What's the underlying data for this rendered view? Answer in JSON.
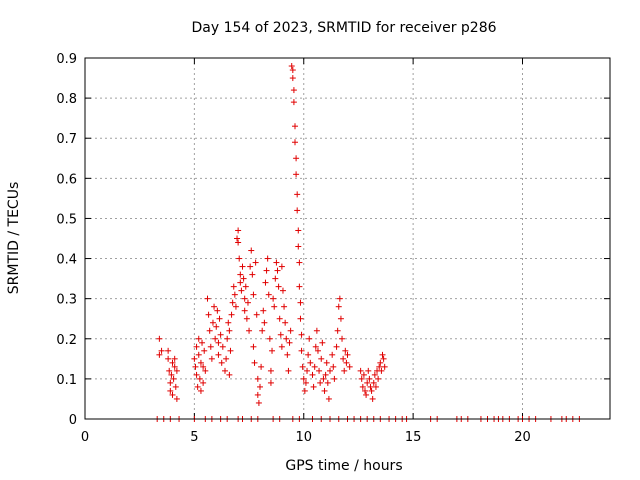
{
  "chart_data": {
    "type": "scatter",
    "title": "Day 154 of 2023, SRMTID for receiver p286",
    "xlabel": "GPS time / hours",
    "ylabel": "SRMTID / TECUs",
    "xlim": [
      0,
      24
    ],
    "ylim": [
      0,
      0.9
    ],
    "xticks": [
      0,
      5,
      10,
      15,
      20
    ],
    "yticks": [
      0,
      0.1,
      0.2,
      0.3,
      0.4,
      0.5,
      0.6,
      0.7,
      0.8,
      0.9
    ],
    "grid": true,
    "marker": "+",
    "color": "#e00000",
    "series": [
      {
        "name": "SRMTID",
        "points": [
          [
            3.4,
            0.2
          ],
          [
            3.4,
            0.16
          ],
          [
            3.5,
            0.17
          ],
          [
            3.8,
            0.17
          ],
          [
            3.8,
            0.15
          ],
          [
            3.85,
            0.12
          ],
          [
            3.9,
            0.09
          ],
          [
            3.9,
            0.07
          ],
          [
            3.95,
            0.11
          ],
          [
            4.0,
            0.14
          ],
          [
            4.0,
            0.06
          ],
          [
            4.05,
            0.1
          ],
          [
            4.1,
            0.15
          ],
          [
            4.1,
            0.13
          ],
          [
            4.15,
            0.08
          ],
          [
            4.2,
            0.12
          ],
          [
            4.2,
            0.05
          ],
          [
            5.0,
            0.15
          ],
          [
            5.05,
            0.13
          ],
          [
            5.1,
            0.18
          ],
          [
            5.1,
            0.11
          ],
          [
            5.15,
            0.08
          ],
          [
            5.2,
            0.2
          ],
          [
            5.2,
            0.16
          ],
          [
            5.25,
            0.1
          ],
          [
            5.3,
            0.14
          ],
          [
            5.3,
            0.07
          ],
          [
            5.35,
            0.19
          ],
          [
            5.4,
            0.13
          ],
          [
            5.4,
            0.09
          ],
          [
            5.45,
            0.17
          ],
          [
            5.5,
            0.12
          ],
          [
            5.6,
            0.3
          ],
          [
            5.65,
            0.26
          ],
          [
            5.7,
            0.22
          ],
          [
            5.75,
            0.18
          ],
          [
            5.8,
            0.15
          ],
          [
            5.85,
            0.24
          ],
          [
            5.9,
            0.28
          ],
          [
            5.95,
            0.2
          ],
          [
            6.0,
            0.23
          ],
          [
            6.05,
            0.27
          ],
          [
            6.1,
            0.19
          ],
          [
            6.1,
            0.16
          ],
          [
            6.15,
            0.25
          ],
          [
            6.2,
            0.21
          ],
          [
            6.25,
            0.14
          ],
          [
            6.3,
            0.18
          ],
          [
            6.4,
            0.12
          ],
          [
            6.45,
            0.15
          ],
          [
            6.5,
            0.2
          ],
          [
            6.55,
            0.24
          ],
          [
            6.6,
            0.22
          ],
          [
            6.6,
            0.11
          ],
          [
            6.65,
            0.17
          ],
          [
            6.7,
            0.26
          ],
          [
            6.75,
            0.29
          ],
          [
            6.8,
            0.33
          ],
          [
            6.85,
            0.31
          ],
          [
            6.9,
            0.28
          ],
          [
            6.95,
            0.45
          ],
          [
            7.0,
            0.47
          ],
          [
            7.0,
            0.44
          ],
          [
            7.05,
            0.4
          ],
          [
            7.1,
            0.36
          ],
          [
            7.1,
            0.34
          ],
          [
            7.15,
            0.32
          ],
          [
            7.2,
            0.38
          ],
          [
            7.25,
            0.35
          ],
          [
            7.3,
            0.3
          ],
          [
            7.3,
            0.27
          ],
          [
            7.35,
            0.33
          ],
          [
            7.4,
            0.25
          ],
          [
            7.45,
            0.29
          ],
          [
            7.5,
            0.22
          ],
          [
            7.55,
            0.38
          ],
          [
            7.6,
            0.42
          ],
          [
            7.65,
            0.36
          ],
          [
            7.7,
            0.31
          ],
          [
            7.7,
            0.18
          ],
          [
            7.75,
            0.14
          ],
          [
            7.8,
            0.39
          ],
          [
            7.85,
            0.26
          ],
          [
            7.9,
            0.1
          ],
          [
            7.9,
            0.06
          ],
          [
            7.95,
            0.04
          ],
          [
            8.0,
            0.08
          ],
          [
            8.05,
            0.13
          ],
          [
            8.1,
            0.22
          ],
          [
            8.15,
            0.27
          ],
          [
            8.2,
            0.24
          ],
          [
            8.25,
            0.34
          ],
          [
            8.3,
            0.37
          ],
          [
            8.35,
            0.4
          ],
          [
            8.4,
            0.31
          ],
          [
            8.45,
            0.2
          ],
          [
            8.5,
            0.12
          ],
          [
            8.5,
            0.09
          ],
          [
            8.55,
            0.17
          ],
          [
            8.6,
            0.3
          ],
          [
            8.65,
            0.28
          ],
          [
            8.7,
            0.35
          ],
          [
            8.75,
            0.39
          ],
          [
            8.8,
            0.37
          ],
          [
            8.85,
            0.33
          ],
          [
            8.9,
            0.25
          ],
          [
            8.95,
            0.21
          ],
          [
            9.0,
            0.18
          ],
          [
            9.0,
            0.38
          ],
          [
            9.05,
            0.32
          ],
          [
            9.1,
            0.28
          ],
          [
            9.15,
            0.24
          ],
          [
            9.2,
            0.2
          ],
          [
            9.25,
            0.16
          ],
          [
            9.3,
            0.12
          ],
          [
            9.35,
            0.19
          ],
          [
            9.4,
            0.22
          ],
          [
            9.45,
            0.88
          ],
          [
            9.5,
            0.87
          ],
          [
            9.5,
            0.85
          ],
          [
            9.55,
            0.82
          ],
          [
            9.55,
            0.79
          ],
          [
            9.6,
            0.73
          ],
          [
            9.6,
            0.69
          ],
          [
            9.65,
            0.65
          ],
          [
            9.65,
            0.61
          ],
          [
            9.7,
            0.56
          ],
          [
            9.7,
            0.52
          ],
          [
            9.75,
            0.47
          ],
          [
            9.75,
            0.43
          ],
          [
            9.8,
            0.39
          ],
          [
            9.8,
            0.33
          ],
          [
            9.85,
            0.29
          ],
          [
            9.85,
            0.25
          ],
          [
            9.9,
            0.21
          ],
          [
            9.9,
            0.17
          ],
          [
            9.95,
            0.13
          ],
          [
            10.0,
            0.1
          ],
          [
            10.05,
            0.07
          ],
          [
            10.1,
            0.09
          ],
          [
            10.15,
            0.12
          ],
          [
            10.2,
            0.16
          ],
          [
            10.25,
            0.2
          ],
          [
            10.3,
            0.14
          ],
          [
            10.4,
            0.11
          ],
          [
            10.45,
            0.08
          ],
          [
            10.5,
            0.13
          ],
          [
            10.55,
            0.18
          ],
          [
            10.6,
            0.22
          ],
          [
            10.65,
            0.17
          ],
          [
            10.7,
            0.12
          ],
          [
            10.75,
            0.09
          ],
          [
            10.8,
            0.15
          ],
          [
            10.85,
            0.19
          ],
          [
            10.9,
            0.1
          ],
          [
            10.95,
            0.07
          ],
          [
            11.0,
            0.11
          ],
          [
            11.05,
            0.14
          ],
          [
            11.1,
            0.09
          ],
          [
            11.15,
            0.05
          ],
          [
            11.2,
            0.12
          ],
          [
            11.3,
            0.16
          ],
          [
            11.35,
            0.13
          ],
          [
            11.4,
            0.1
          ],
          [
            11.5,
            0.18
          ],
          [
            11.55,
            0.22
          ],
          [
            11.6,
            0.28
          ],
          [
            11.65,
            0.3
          ],
          [
            11.7,
            0.25
          ],
          [
            11.75,
            0.2
          ],
          [
            11.8,
            0.15
          ],
          [
            11.85,
            0.12
          ],
          [
            11.9,
            0.17
          ],
          [
            11.95,
            0.14
          ],
          [
            12.0,
            0.16
          ],
          [
            12.1,
            0.13
          ],
          [
            12.6,
            0.12
          ],
          [
            12.65,
            0.1
          ],
          [
            12.7,
            0.08
          ],
          [
            12.75,
            0.11
          ],
          [
            12.8,
            0.07
          ],
          [
            12.85,
            0.06
          ],
          [
            12.9,
            0.09
          ],
          [
            12.95,
            0.12
          ],
          [
            13.0,
            0.1
          ],
          [
            13.05,
            0.08
          ],
          [
            13.1,
            0.07
          ],
          [
            13.15,
            0.05
          ],
          [
            13.2,
            0.09
          ],
          [
            13.25,
            0.11
          ],
          [
            13.3,
            0.08
          ],
          [
            13.35,
            0.12
          ],
          [
            13.4,
            0.1
          ],
          [
            13.45,
            0.13
          ],
          [
            13.5,
            0.14
          ],
          [
            13.55,
            0.12
          ],
          [
            13.6,
            0.16
          ],
          [
            13.65,
            0.15
          ],
          [
            13.7,
            0.13
          ],
          [
            3.3,
            0.0
          ],
          [
            3.6,
            0.0
          ],
          [
            3.9,
            0.0
          ],
          [
            4.3,
            0.0
          ],
          [
            5.0,
            0.0
          ],
          [
            5.5,
            0.0
          ],
          [
            5.8,
            0.0
          ],
          [
            6.2,
            0.0
          ],
          [
            6.5,
            0.0
          ],
          [
            7.0,
            0.0
          ],
          [
            7.2,
            0.0
          ],
          [
            7.6,
            0.0
          ],
          [
            7.9,
            0.0
          ],
          [
            8.6,
            0.0
          ],
          [
            8.9,
            0.0
          ],
          [
            9.5,
            0.0
          ],
          [
            9.8,
            0.0
          ],
          [
            10.4,
            0.0
          ],
          [
            10.8,
            0.0
          ],
          [
            11.2,
            0.0
          ],
          [
            11.6,
            0.0
          ],
          [
            12.0,
            0.0
          ],
          [
            12.3,
            0.0
          ],
          [
            12.6,
            0.0
          ],
          [
            12.9,
            0.0
          ],
          [
            13.2,
            0.0
          ],
          [
            13.5,
            0.0
          ],
          [
            13.9,
            0.0
          ],
          [
            14.2,
            0.0
          ],
          [
            14.5,
            0.0
          ],
          [
            14.7,
            0.0
          ],
          [
            15.8,
            0.0
          ],
          [
            16.1,
            0.0
          ],
          [
            17.0,
            0.0
          ],
          [
            17.2,
            0.0
          ],
          [
            17.5,
            0.0
          ],
          [
            18.1,
            0.0
          ],
          [
            18.4,
            0.0
          ],
          [
            18.7,
            0.0
          ],
          [
            18.9,
            0.0
          ],
          [
            19.1,
            0.0
          ],
          [
            19.4,
            0.0
          ],
          [
            19.8,
            0.0
          ],
          [
            20.0,
            0.0
          ],
          [
            20.3,
            0.0
          ],
          [
            20.6,
            0.0
          ],
          [
            21.3,
            0.0
          ],
          [
            21.8,
            0.0
          ],
          [
            22.0,
            0.0
          ],
          [
            22.3,
            0.0
          ],
          [
            22.6,
            0.0
          ]
        ]
      }
    ]
  }
}
